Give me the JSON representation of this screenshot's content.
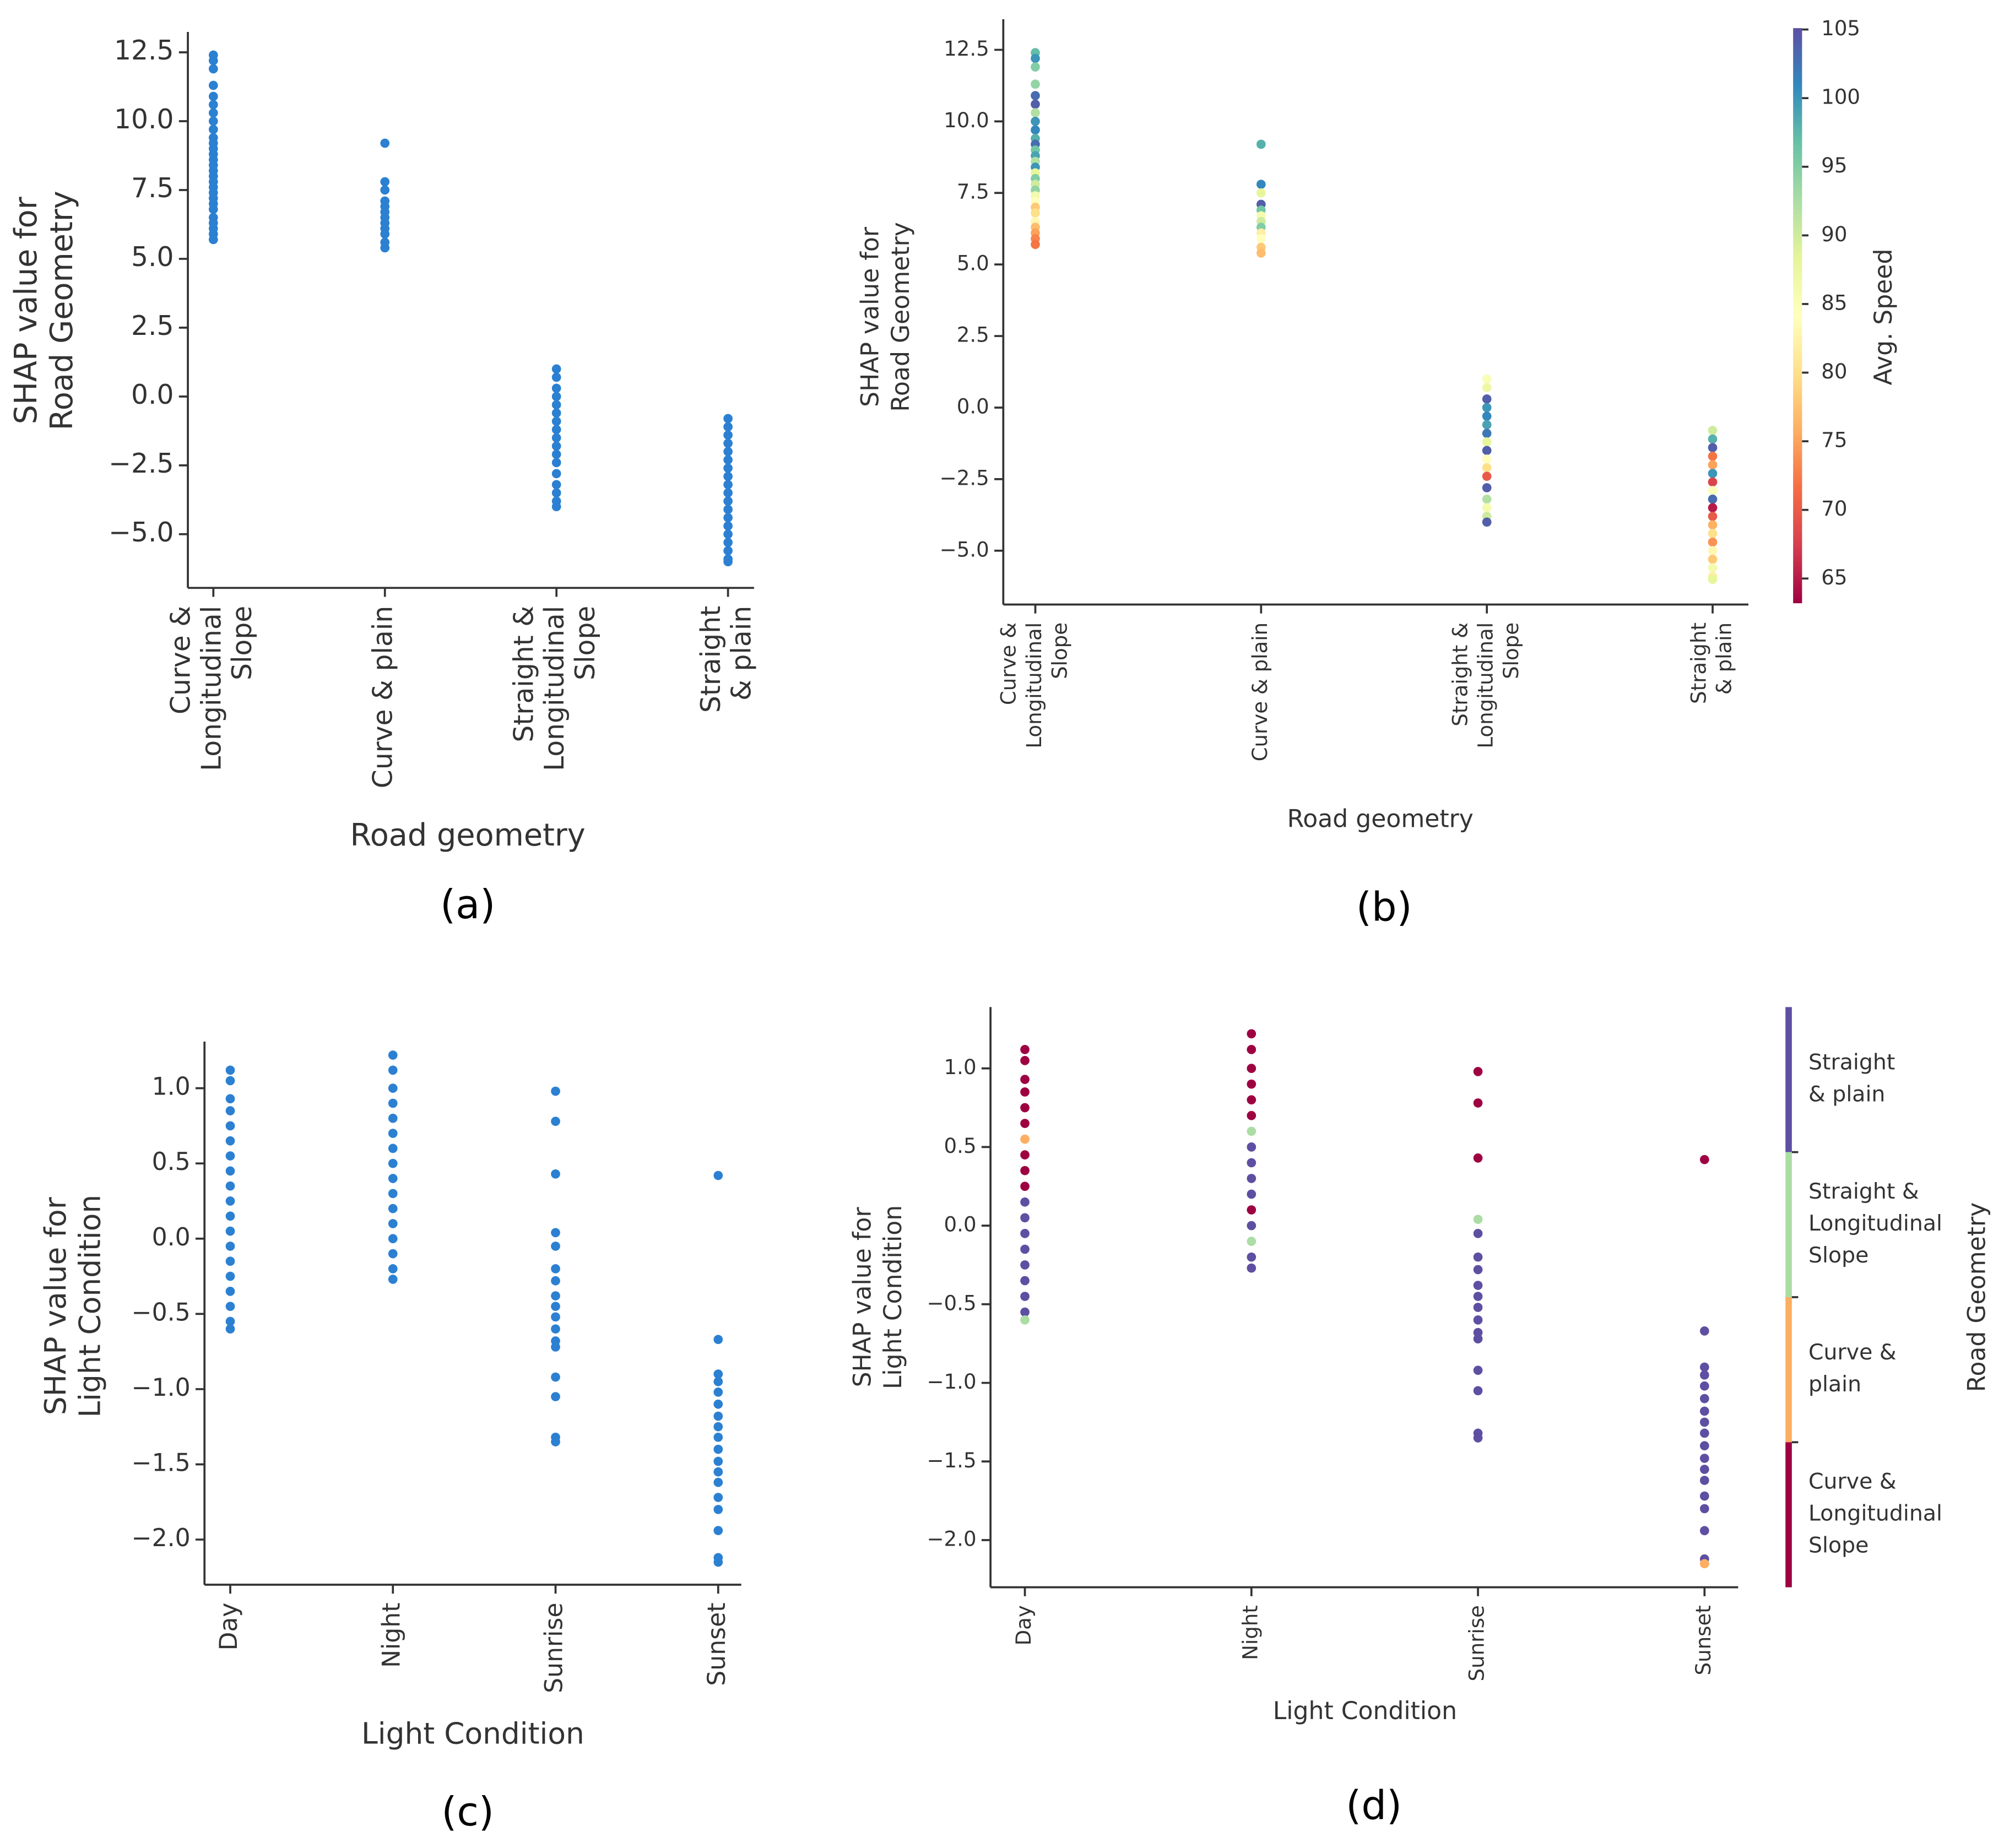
{
  "chart_data": [
    {
      "type": "strip",
      "caption": "(a)",
      "ylabel": [
        "SHAP value for",
        "Road Geometry"
      ],
      "xlabel": "Road geometry",
      "categories": [
        [
          "Curve &",
          "Longitudinal",
          "Slope"
        ],
        [
          "Curve & plain"
        ],
        [
          "Straight &",
          "Longitudinal",
          "Slope"
        ],
        [
          "Straight",
          "& plain"
        ]
      ],
      "values": [
        [
          12.4,
          12.2,
          11.9,
          11.3,
          10.9,
          10.6,
          10.3,
          10.0,
          9.7,
          9.4,
          9.2,
          9.0,
          8.8,
          8.6,
          8.4,
          8.2,
          8.0,
          7.8,
          7.6,
          7.4,
          7.2,
          7.0,
          6.8,
          6.5,
          6.3,
          6.1,
          5.9,
          5.7
        ],
        [
          9.2,
          7.8,
          7.5,
          7.1,
          6.9,
          6.7,
          6.5,
          6.3,
          6.1,
          5.9,
          5.6,
          5.4
        ],
        [
          1.0,
          0.7,
          0.3,
          0.0,
          -0.3,
          -0.6,
          -0.9,
          -1.2,
          -1.5,
          -1.8,
          -2.1,
          -2.4,
          -2.8,
          -3.2,
          -3.5,
          -3.8,
          -4.0
        ],
        [
          -0.8,
          -1.1,
          -1.4,
          -1.7,
          -2.0,
          -2.3,
          -2.6,
          -2.9,
          -3.2,
          -3.5,
          -3.8,
          -4.1,
          -4.4,
          -4.7,
          -5.0,
          -5.3,
          -5.6,
          -5.9,
          -6.0
        ]
      ],
      "color": "#2b80d2",
      "ylim": [
        -6.95,
        13.24
      ],
      "yticks": [
        12.5,
        {
          "value": 10,
          "label": "10.0"
        },
        7.5,
        {
          "value": 5,
          "label": "5.0"
        },
        2.5,
        {
          "value": 0,
          "label": "0.0"
        },
        {
          "value": -2.5,
          "label": "−2.5"
        },
        {
          "value": -5,
          "label": "−5.0"
        }
      ]
    },
    {
      "type": "strip",
      "caption": "(b)",
      "ylabel": [
        "SHAP value for",
        "Road Geometry"
      ],
      "xlabel": "Road geometry",
      "categories": [
        [
          "Curve &",
          "Longitudinal",
          "Slope"
        ],
        [
          "Curve & plain"
        ],
        [
          "Straight &",
          "Longitudinal",
          "Slope"
        ],
        [
          "Straight",
          "& plain"
        ]
      ],
      "values": [
        [
          12.4,
          12.2,
          11.9,
          11.3,
          10.9,
          10.6,
          10.3,
          10.0,
          9.7,
          9.4,
          9.2,
          9.0,
          8.8,
          8.6,
          8.4,
          8.2,
          8.0,
          7.8,
          7.6,
          7.4,
          7.2,
          7.0,
          6.8,
          6.5,
          6.3,
          6.1,
          5.9,
          5.7
        ],
        [
          9.2,
          7.8,
          7.5,
          7.1,
          6.9,
          6.7,
          6.5,
          6.3,
          6.1,
          5.9,
          5.6,
          5.4
        ],
        [
          1.0,
          0.7,
          0.3,
          0.0,
          -0.3,
          -0.6,
          -0.9,
          -1.2,
          -1.5,
          -1.8,
          -2.1,
          -2.4,
          -2.8,
          -3.2,
          -3.5,
          -3.8,
          -4.0
        ],
        [
          -0.8,
          -1.1,
          -1.4,
          -1.7,
          -2.0,
          -2.3,
          -2.6,
          -2.9,
          -3.2,
          -3.5,
          -3.8,
          -4.1,
          -4.4,
          -4.7,
          -5.0,
          -5.3,
          -5.6,
          -5.9,
          -6.0
        ]
      ],
      "color_values": [
        [
          97,
          100,
          95,
          94,
          103,
          104,
          92,
          100,
          101,
          98,
          103,
          96,
          99,
          92,
          100,
          88,
          95,
          90,
          94,
          86,
          84,
          78,
          80,
          83,
          77,
          75,
          73,
          72
        ],
        [
          98,
          101,
          88,
          104,
          96,
          86,
          90,
          95,
          82,
          84,
          78,
          77
        ],
        [
          85,
          87,
          104,
          100,
          101,
          99,
          102,
          88,
          104,
          84,
          80,
          70,
          104,
          92,
          86,
          90,
          104
        ],
        [
          90,
          98,
          104,
          72,
          75,
          100,
          68,
          85,
          103,
          65,
          70,
          76,
          80,
          74,
          83,
          78,
          86,
          82,
          88
        ]
      ],
      "colormap": [
        "#9e0142",
        "#d53e4f",
        "#f46d43",
        "#fdae61",
        "#fee08b",
        "#ffffbf",
        "#e6f598",
        "#abdda4",
        "#66c2a5",
        "#3288bd",
        "#5e4fa2"
      ],
      "clim": [
        63.2,
        105.1
      ],
      "cticks": [
        65,
        70,
        75,
        80,
        85,
        90,
        95,
        100,
        105
      ],
      "clabel": "Avg. Speed",
      "ylim": [
        -6.88,
        13.57
      ],
      "yticks": [
        12.5,
        {
          "value": 10,
          "label": "10.0"
        },
        7.5,
        {
          "value": 5,
          "label": "5.0"
        },
        2.5,
        {
          "value": 0,
          "label": "0.0"
        },
        {
          "value": -2.5,
          "label": "−2.5"
        },
        {
          "value": -5,
          "label": "−5.0"
        }
      ]
    },
    {
      "type": "strip",
      "caption": "(c)",
      "ylabel": [
        "SHAP value for",
        "Light Condition"
      ],
      "xlabel": "Light Condition",
      "categories": [
        [
          "Day"
        ],
        [
          "Night"
        ],
        [
          "Sunrise"
        ],
        [
          "Sunset"
        ]
      ],
      "values": [
        [
          1.12,
          1.05,
          0.93,
          0.85,
          0.75,
          0.65,
          0.55,
          0.45,
          0.35,
          0.25,
          0.15,
          0.05,
          -0.05,
          -0.15,
          -0.25,
          -0.35,
          -0.45,
          -0.55,
          -0.6
        ],
        [
          1.22,
          1.12,
          1.0,
          0.9,
          0.8,
          0.7,
          0.6,
          0.5,
          0.4,
          0.3,
          0.2,
          0.1,
          0.0,
          -0.1,
          -0.2,
          -0.27
        ],
        [
          0.98,
          0.78,
          0.43,
          0.04,
          -0.05,
          -0.2,
          -0.28,
          -0.38,
          -0.45,
          -0.52,
          -0.6,
          -0.68,
          -0.72,
          -0.92,
          -1.05,
          -1.32,
          -1.35
        ],
        [
          0.42,
          -0.67,
          -0.9,
          -0.95,
          -1.02,
          -1.1,
          -1.18,
          -1.25,
          -1.32,
          -1.4,
          -1.48,
          -1.55,
          -1.62,
          -1.72,
          -1.8,
          -1.94,
          -2.12,
          -2.15
        ]
      ],
      "color": "#2b80d2",
      "ylim": [
        -2.3,
        1.31
      ],
      "yticks": [
        {
          "value": 1,
          "label": "1.0"
        },
        0.5,
        {
          "value": 0,
          "label": "0.0"
        },
        {
          "value": -0.5,
          "label": "−0.5"
        },
        {
          "value": -1,
          "label": "−1.0"
        },
        {
          "value": -1.5,
          "label": "−1.5"
        },
        {
          "value": -2,
          "label": "−2.0"
        }
      ]
    },
    {
      "type": "strip",
      "caption": "(d)",
      "ylabel": [
        "SHAP value for",
        "Light Condition"
      ],
      "xlabel": "Light Condition",
      "categories": [
        [
          "Day"
        ],
        [
          "Night"
        ],
        [
          "Sunrise"
        ],
        [
          "Sunset"
        ]
      ],
      "values": [
        [
          1.12,
          1.05,
          0.93,
          0.85,
          0.75,
          0.65,
          0.55,
          0.45,
          0.35,
          0.25,
          0.15,
          0.05,
          -0.05,
          -0.15,
          -0.25,
          -0.35,
          -0.45,
          -0.55,
          -0.6
        ],
        [
          1.22,
          1.12,
          1.0,
          0.9,
          0.8,
          0.7,
          0.6,
          0.5,
          0.4,
          0.3,
          0.2,
          0.1,
          0.0,
          -0.1,
          -0.2,
          -0.27
        ],
        [
          0.98,
          0.78,
          0.43,
          0.04,
          -0.05,
          -0.2,
          -0.28,
          -0.38,
          -0.45,
          -0.52,
          -0.6,
          -0.68,
          -0.72,
          -0.92,
          -1.05,
          -1.32,
          -1.35
        ],
        [
          0.42,
          -0.67,
          -0.9,
          -0.95,
          -1.02,
          -1.1,
          -1.18,
          -1.25,
          -1.32,
          -1.4,
          -1.48,
          -1.55,
          -1.62,
          -1.72,
          -1.8,
          -1.94,
          -2.12,
          -2.15
        ]
      ],
      "color_index": [
        [
          3,
          3,
          3,
          3,
          3,
          3,
          2,
          3,
          3,
          3,
          0,
          0,
          0,
          0,
          0,
          0,
          0,
          0,
          1
        ],
        [
          3,
          3,
          3,
          3,
          3,
          3,
          1,
          0,
          0,
          0,
          0,
          3,
          0,
          1,
          0,
          0
        ],
        [
          3,
          3,
          3,
          1,
          0,
          0,
          0,
          0,
          0,
          0,
          0,
          0,
          0,
          0,
          0,
          0,
          0
        ],
        [
          3,
          0,
          0,
          0,
          0,
          0,
          0,
          0,
          0,
          0,
          0,
          0,
          0,
          0,
          0,
          0,
          0,
          2
        ]
      ],
      "color_categories": [
        [
          "Straight",
          "& plain"
        ],
        [
          "Straight &",
          "Longitudinal",
          "Slope"
        ],
        [
          "Curve &",
          "plain"
        ],
        [
          "Curve &",
          "Longitudinal",
          "Slope"
        ]
      ],
      "palette": [
        "#5e4fa2",
        "#abdda4",
        "#fdae61",
        "#9e0142"
      ],
      "clabel": "Road Geometry",
      "ylim": [
        -2.3,
        1.39
      ],
      "yticks": [
        {
          "value": 1,
          "label": "1.0"
        },
        0.5,
        {
          "value": 0,
          "label": "0.0"
        },
        {
          "value": -0.5,
          "label": "−0.5"
        },
        {
          "value": -1,
          "label": "−1.0"
        },
        {
          "value": -1.5,
          "label": "−1.5"
        },
        {
          "value": -2,
          "label": "−2.0"
        }
      ]
    }
  ]
}
